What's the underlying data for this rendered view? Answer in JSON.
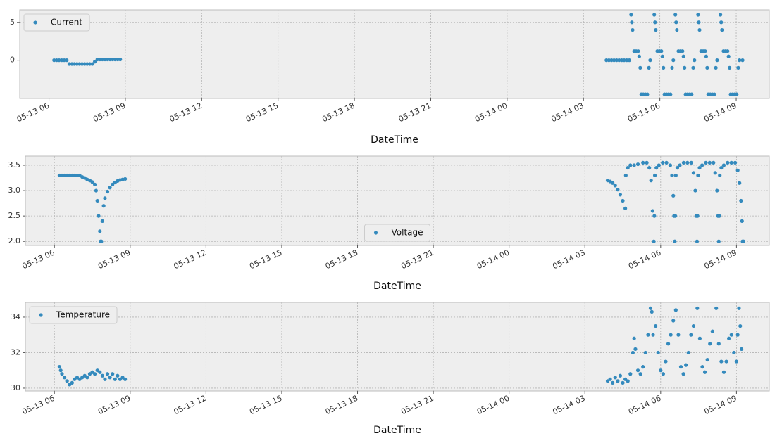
{
  "chart_data": [
    {
      "type": "scatter",
      "xlabel": "DateTime",
      "x": [
        6.2,
        6.3,
        6.4,
        6.5,
        6.6,
        6.7,
        6.8,
        6.9,
        7.0,
        7.1,
        7.2,
        7.3,
        7.4,
        7.5,
        7.6,
        7.7,
        7.8,
        7.9,
        8.0,
        8.1,
        8.2,
        8.3,
        8.4,
        8.5,
        8.6,
        8.7,
        8.8,
        27.9,
        28.0,
        28.1,
        28.2,
        28.3,
        28.4,
        28.5,
        28.6,
        28.7,
        28.8,
        28.87,
        28.9,
        28.93,
        28.99,
        29.07,
        29.15,
        29.19,
        29.23,
        29.27,
        29.35,
        29.43,
        29.51,
        29.57,
        29.62,
        29.78,
        29.81,
        29.84,
        29.9,
        29.98,
        30.06,
        30.1,
        30.14,
        30.18,
        30.26,
        30.34,
        30.42,
        30.48,
        30.53,
        30.61,
        30.64,
        30.67,
        30.73,
        30.81,
        30.89,
        30.93,
        30.97,
        31.01,
        31.09,
        31.17,
        31.25,
        31.31,
        31.36,
        31.5,
        31.53,
        31.56,
        31.62,
        31.7,
        31.78,
        31.82,
        31.86,
        31.9,
        31.98,
        32.06,
        32.14,
        32.2,
        32.25,
        32.38,
        32.41,
        32.44,
        32.5,
        32.58,
        32.66,
        32.7,
        32.74,
        32.78,
        32.86,
        32.94,
        33.02,
        33.08,
        33.13,
        33.25
      ],
      "series": [
        {
          "name": "Current",
          "color": "#348abd",
          "values": [
            0,
            0,
            0,
            0,
            0,
            0,
            -0.5,
            -0.5,
            -0.5,
            -0.5,
            -0.5,
            -0.5,
            -0.5,
            -0.5,
            -0.5,
            -0.5,
            -0.2,
            0.1,
            0.1,
            0.1,
            0.1,
            0.1,
            0.1,
            0.1,
            0.1,
            0.1,
            0.1,
            0,
            0,
            0,
            0,
            0,
            0,
            0,
            0,
            0,
            0,
            6,
            5,
            4,
            1.2,
            1.2,
            1.2,
            0.5,
            -1,
            -4.5,
            -4.5,
            -4.5,
            -4.5,
            -1,
            0,
            6,
            5,
            4,
            1.2,
            1.2,
            1.2,
            0.5,
            -1,
            -4.5,
            -4.5,
            -4.5,
            -4.5,
            -1,
            0,
            6,
            5,
            4,
            1.2,
            1.2,
            1.2,
            0.5,
            -1,
            -4.5,
            -4.5,
            -4.5,
            -4.5,
            -1,
            0,
            6,
            5,
            4,
            1.2,
            1.2,
            1.2,
            0.5,
            -1,
            -4.5,
            -4.5,
            -4.5,
            -4.5,
            -1,
            0,
            6,
            5,
            4,
            1.2,
            1.2,
            1.2,
            0.5,
            -1,
            -4.5,
            -4.5,
            -4.5,
            -4.5,
            -1,
            0,
            0
          ]
        }
      ],
      "xlim": [
        4.85,
        34.3
      ],
      "xticks": [
        {
          "value": 6,
          "label": "05-13 06"
        },
        {
          "value": 9,
          "label": "05-13 09"
        },
        {
          "value": 12,
          "label": "05-13 12"
        },
        {
          "value": 15,
          "label": "05-13 15"
        },
        {
          "value": 18,
          "label": "05-13 18"
        },
        {
          "value": 21,
          "label": "05-13 21"
        },
        {
          "value": 24,
          "label": "05-14 00"
        },
        {
          "value": 27,
          "label": "05-14 03"
        },
        {
          "value": 30,
          "label": "05-14 06"
        },
        {
          "value": 33,
          "label": "05-14 09"
        }
      ],
      "ylim": [
        -5.05,
        6.65
      ],
      "yticks": [
        0,
        5
      ],
      "grid": true,
      "legend": "upper left"
    },
    {
      "type": "scatter",
      "xlabel": "DateTime",
      "x": [
        6.2,
        6.3,
        6.4,
        6.5,
        6.6,
        6.7,
        6.8,
        6.9,
        7.0,
        7.1,
        7.2,
        7.3,
        7.4,
        7.5,
        7.6,
        7.65,
        7.7,
        7.75,
        7.8,
        7.83,
        7.86,
        7.9,
        7.95,
        8.0,
        8.1,
        8.2,
        8.3,
        8.4,
        8.5,
        8.6,
        8.7,
        8.8,
        27.9,
        28.0,
        28.1,
        28.2,
        28.3,
        28.4,
        28.5,
        28.6,
        28.62,
        28.7,
        28.8,
        28.95,
        29.1,
        29.3,
        29.45,
        29.55,
        29.62,
        29.68,
        29.73,
        29.75,
        29.77,
        29.83,
        29.93,
        30.08,
        30.23,
        30.38,
        30.45,
        30.5,
        30.53,
        30.56,
        30.58,
        30.6,
        30.66,
        30.76,
        30.91,
        31.06,
        31.21,
        31.3,
        31.37,
        31.41,
        31.44,
        31.46,
        31.48,
        31.54,
        31.64,
        31.79,
        31.94,
        32.09,
        32.16,
        32.23,
        32.27,
        32.3,
        32.32,
        32.34,
        32.4,
        32.5,
        32.65,
        32.8,
        32.95,
        33.05,
        33.12,
        33.18,
        33.22,
        33.24,
        33.28
      ],
      "series": [
        {
          "name": "Voltage",
          "color": "#348abd",
          "values": [
            3.3,
            3.3,
            3.3,
            3.3,
            3.3,
            3.3,
            3.3,
            3.3,
            3.3,
            3.27,
            3.25,
            3.22,
            3.2,
            3.17,
            3.12,
            3.0,
            2.8,
            2.5,
            2.2,
            2.0,
            2.0,
            2.4,
            2.7,
            2.85,
            2.98,
            3.06,
            3.12,
            3.16,
            3.19,
            3.21,
            3.22,
            3.23,
            3.2,
            3.18,
            3.15,
            3.1,
            3.02,
            2.92,
            2.8,
            2.65,
            3.3,
            3.45,
            3.5,
            3.5,
            3.52,
            3.55,
            3.55,
            3.45,
            3.2,
            2.6,
            2.0,
            2.5,
            3.3,
            3.45,
            3.5,
            3.55,
            3.55,
            3.5,
            3.3,
            2.9,
            2.5,
            2.0,
            2.5,
            3.3,
            3.45,
            3.5,
            3.55,
            3.55,
            3.55,
            3.35,
            3.0,
            2.5,
            2.0,
            2.5,
            3.3,
            3.45,
            3.5,
            3.55,
            3.55,
            3.55,
            3.35,
            3.0,
            2.5,
            2.0,
            2.5,
            3.3,
            3.45,
            3.5,
            3.55,
            3.55,
            3.55,
            3.4,
            3.15,
            2.8,
            2.4,
            2.0,
            2.0
          ]
        }
      ],
      "xlim": [
        4.85,
        34.3
      ],
      "xticks": [
        {
          "value": 6,
          "label": "05-13 06"
        },
        {
          "value": 9,
          "label": "05-13 09"
        },
        {
          "value": 12,
          "label": "05-13 12"
        },
        {
          "value": 15,
          "label": "05-13 15"
        },
        {
          "value": 18,
          "label": "05-13 18"
        },
        {
          "value": 21,
          "label": "05-13 21"
        },
        {
          "value": 24,
          "label": "05-14 00"
        },
        {
          "value": 27,
          "label": "05-14 03"
        },
        {
          "value": 30,
          "label": "05-14 06"
        },
        {
          "value": 33,
          "label": "05-14 09"
        }
      ],
      "ylim": [
        1.92,
        3.68
      ],
      "yticks": [
        {
          "value": 2,
          "label": "2.0"
        },
        2.5,
        {
          "value": 3,
          "label": "3.0"
        },
        3.5
      ],
      "grid": true,
      "legend": "lower center"
    },
    {
      "type": "scatter",
      "xlabel": "DateTime",
      "x": [
        6.2,
        6.25,
        6.3,
        6.4,
        6.5,
        6.6,
        6.7,
        6.8,
        6.9,
        7.0,
        7.1,
        7.2,
        7.3,
        7.4,
        7.5,
        7.6,
        7.7,
        7.8,
        7.9,
        8.0,
        8.1,
        8.2,
        8.3,
        8.4,
        8.5,
        8.6,
        8.7,
        8.8,
        27.9,
        28.0,
        28.1,
        28.2,
        28.3,
        28.4,
        28.5,
        28.6,
        28.7,
        28.8,
        28.9,
        28.95,
        29.0,
        29.1,
        29.2,
        29.3,
        29.4,
        29.5,
        29.6,
        29.65,
        29.7,
        29.8,
        29.9,
        30.0,
        30.1,
        30.2,
        30.3,
        30.4,
        30.5,
        30.6,
        30.7,
        30.8,
        30.9,
        31.0,
        31.1,
        31.2,
        31.3,
        31.45,
        31.55,
        31.65,
        31.75,
        31.85,
        31.95,
        32.05,
        32.2,
        32.3,
        32.4,
        32.5,
        32.6,
        32.7,
        32.8,
        32.9,
        33.0,
        33.05,
        33.1,
        33.15,
        33.2
      ],
      "series": [
        {
          "name": "Temperature",
          "color": "#348abd",
          "values": [
            31.2,
            31.0,
            30.8,
            30.6,
            30.4,
            30.2,
            30.3,
            30.5,
            30.6,
            30.5,
            30.6,
            30.7,
            30.6,
            30.8,
            30.9,
            30.8,
            31.0,
            30.9,
            30.7,
            30.5,
            30.8,
            30.6,
            30.8,
            30.5,
            30.7,
            30.5,
            30.6,
            30.5,
            30.4,
            30.5,
            30.3,
            30.6,
            30.4,
            30.7,
            30.3,
            30.5,
            30.4,
            30.8,
            32.0,
            32.8,
            32.2,
            31.0,
            30.8,
            31.2,
            32.0,
            33.0,
            34.5,
            34.3,
            33.0,
            33.5,
            32.0,
            31.0,
            30.8,
            31.5,
            32.5,
            33.0,
            33.8,
            34.4,
            33.0,
            31.2,
            30.8,
            31.3,
            32.0,
            33.0,
            33.5,
            34.5,
            32.8,
            31.2,
            30.9,
            31.6,
            32.5,
            33.2,
            34.5,
            32.5,
            31.5,
            30.9,
            31.5,
            32.8,
            33.0,
            32.0,
            31.5,
            33.0,
            34.5,
            33.5,
            32.2
          ]
        }
      ],
      "xlim": [
        4.85,
        34.3
      ],
      "xticks": [
        {
          "value": 6,
          "label": "05-13 06"
        },
        {
          "value": 9,
          "label": "05-13 09"
        },
        {
          "value": 12,
          "label": "05-13 12"
        },
        {
          "value": 15,
          "label": "05-13 15"
        },
        {
          "value": 18,
          "label": "05-13 18"
        },
        {
          "value": 21,
          "label": "05-13 21"
        },
        {
          "value": 24,
          "label": "05-14 00"
        },
        {
          "value": 27,
          "label": "05-14 03"
        },
        {
          "value": 30,
          "label": "05-14 06"
        },
        {
          "value": 33,
          "label": "05-14 09"
        }
      ],
      "ylim": [
        29.84,
        34.83
      ],
      "yticks": [
        30,
        32,
        34
      ],
      "grid": true,
      "legend": "upper left"
    }
  ]
}
